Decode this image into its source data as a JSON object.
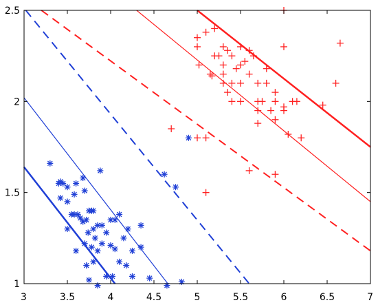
{
  "chart_data": {
    "type": "scatter",
    "title": "",
    "xlabel": "",
    "ylabel": "",
    "xlim": [
      3,
      7
    ],
    "ylim": [
      1,
      2.5
    ],
    "grid": false,
    "x_ticks": [
      "3",
      "3.5",
      "4",
      "4.5",
      "5",
      "5.5",
      "6",
      "6.5",
      "7"
    ],
    "y_ticks": [
      "1",
      "1.5",
      "2",
      "2.5"
    ],
    "colors": {
      "class_a": "#1f3fd6",
      "class_b": "#ff2020"
    },
    "series": [
      {
        "marker": "asterisk",
        "color": "#1f3fd6",
        "points": [
          [
            3.3,
            1.66
          ],
          [
            3.4,
            1.55
          ],
          [
            3.42,
            1.56
          ],
          [
            3.45,
            1.55
          ],
          [
            3.5,
            1.53
          ],
          [
            3.6,
            1.55
          ],
          [
            3.42,
            1.47
          ],
          [
            3.5,
            1.45
          ],
          [
            3.58,
            1.49
          ],
          [
            3.68,
            1.58
          ],
          [
            3.7,
            1.51
          ],
          [
            3.55,
            1.38
          ],
          [
            3.58,
            1.38
          ],
          [
            3.62,
            1.38
          ],
          [
            3.65,
            1.36
          ],
          [
            3.68,
            1.34
          ],
          [
            3.75,
            1.4
          ],
          [
            3.78,
            1.4
          ],
          [
            3.8,
            1.4
          ],
          [
            3.72,
            1.35
          ],
          [
            3.74,
            1.28
          ],
          [
            3.5,
            1.3
          ],
          [
            3.7,
            1.22
          ],
          [
            3.8,
            1.3
          ],
          [
            3.85,
            1.32
          ],
          [
            3.9,
            1.32
          ],
          [
            3.82,
            1.25
          ],
          [
            3.9,
            1.22
          ],
          [
            3.78,
            1.2
          ],
          [
            3.6,
            1.18
          ],
          [
            3.72,
            1.1
          ],
          [
            3.8,
            1.12
          ],
          [
            3.85,
            1.18
          ],
          [
            3.95,
            1.28
          ],
          [
            4.0,
            1.35
          ],
          [
            4.05,
            1.35
          ],
          [
            4.1,
            1.38
          ],
          [
            4.0,
            1.21
          ],
          [
            4.05,
            1.19
          ],
          [
            4.15,
            1.25
          ],
          [
            4.2,
            1.3
          ],
          [
            4.1,
            1.12
          ],
          [
            4.18,
            1.1
          ],
          [
            4.25,
            1.18
          ],
          [
            4.35,
            1.2
          ],
          [
            4.35,
            1.32
          ],
          [
            4.25,
            1.04
          ],
          [
            4.45,
            1.03
          ],
          [
            3.95,
            1.04
          ],
          [
            3.85,
            0.99
          ],
          [
            3.88,
            1.62
          ],
          [
            4.02,
            1.04
          ],
          [
            4.62,
            1.6
          ],
          [
            4.75,
            1.53
          ],
          [
            4.82,
            1.01
          ],
          [
            4.65,
            0.99
          ],
          [
            4.9,
            1.8
          ],
          [
            3.75,
            1.02
          ]
        ]
      },
      {
        "marker": "plus",
        "color": "#ff2020",
        "points": [
          [
            4.7,
            1.85
          ],
          [
            5.0,
            1.8
          ],
          [
            5.1,
            1.8
          ],
          [
            5.1,
            1.5
          ],
          [
            5.6,
            1.62
          ],
          [
            5.9,
            1.6
          ],
          [
            6.0,
            1.97
          ],
          [
            6.05,
            1.82
          ],
          [
            6.2,
            1.8
          ],
          [
            6.45,
            1.98
          ],
          [
            6.6,
            2.1
          ],
          [
            6.65,
            2.32
          ],
          [
            6.0,
            2.5
          ],
          [
            6.0,
            2.3
          ],
          [
            6.1,
            2.0
          ],
          [
            6.15,
            2.0
          ],
          [
            6.0,
            1.95
          ],
          [
            5.9,
            1.9
          ],
          [
            5.85,
            1.95
          ],
          [
            5.9,
            2.05
          ],
          [
            5.8,
            2.1
          ],
          [
            5.7,
            2.1
          ],
          [
            5.8,
            2.18
          ],
          [
            5.75,
            2.0
          ],
          [
            5.7,
            1.95
          ],
          [
            5.7,
            1.88
          ],
          [
            5.5,
            2.0
          ],
          [
            5.4,
            2.0
          ],
          [
            5.35,
            2.05
          ],
          [
            5.4,
            2.1
          ],
          [
            5.5,
            2.1
          ],
          [
            5.5,
            2.2
          ],
          [
            5.55,
            2.22
          ],
          [
            5.6,
            2.28
          ],
          [
            5.65,
            2.25
          ],
          [
            5.6,
            2.15
          ],
          [
            5.45,
            2.18
          ],
          [
            5.4,
            2.25
          ],
          [
            5.3,
            2.3
          ],
          [
            5.35,
            2.28
          ],
          [
            5.3,
            2.2
          ],
          [
            5.2,
            2.25
          ],
          [
            5.25,
            2.25
          ],
          [
            5.15,
            2.15
          ],
          [
            5.2,
            2.4
          ],
          [
            5.1,
            2.38
          ],
          [
            5.0,
            2.35
          ],
          [
            5.0,
            2.3
          ],
          [
            5.02,
            2.2
          ],
          [
            5.17,
            2.14
          ],
          [
            5.5,
            2.3
          ],
          [
            5.3,
            2.1
          ],
          [
            5.9,
            2.0
          ],
          [
            5.7,
            2.0
          ],
          [
            5.3,
            2.15
          ]
        ]
      }
    ],
    "lines": [
      {
        "color": "#1f3fd6",
        "style": "solid",
        "width": 2.5,
        "from": [
          3,
          1.64
        ],
        "to": [
          4.05,
          1.0
        ]
      },
      {
        "color": "#1f3fd6",
        "style": "solid",
        "width": 1.2,
        "from": [
          3,
          2.02
        ],
        "to": [
          4.66,
          1.0
        ]
      },
      {
        "color": "#1f3fd6",
        "style": "dashed",
        "width": 2.0,
        "from": [
          3.02,
          2.5
        ],
        "to": [
          5.6,
          1.0
        ]
      },
      {
        "color": "#ff2020",
        "style": "dashed",
        "width": 2.0,
        "from": [
          3.2,
          2.5
        ],
        "to": [
          7.0,
          1.18
        ]
      },
      {
        "color": "#ff2020",
        "style": "solid",
        "width": 1.2,
        "from": [
          4.3,
          2.5
        ],
        "to": [
          7.0,
          1.45
        ]
      },
      {
        "color": "#ff2020",
        "style": "solid",
        "width": 2.5,
        "from": [
          5.0,
          2.5
        ],
        "to": [
          7.0,
          1.75
        ]
      }
    ]
  }
}
